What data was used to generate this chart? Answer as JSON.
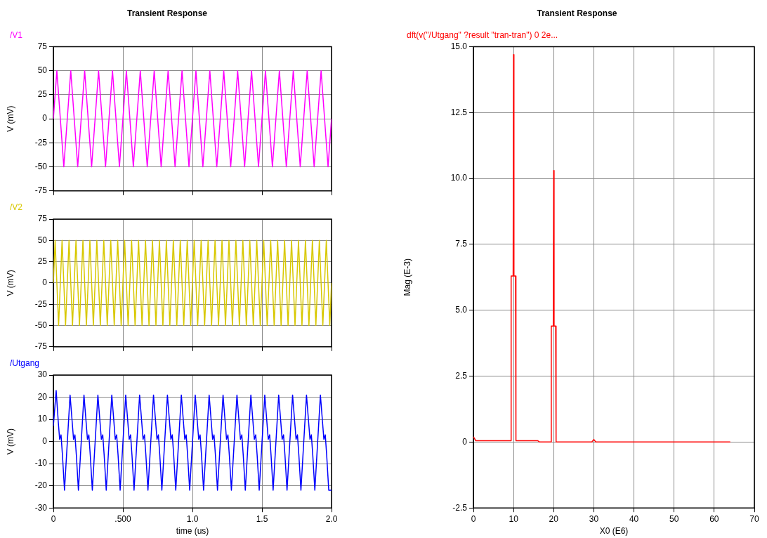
{
  "chart_data": [
    {
      "type": "line",
      "title": "Transient Response",
      "ylabel": "V (mV)",
      "xlim": [
        0,
        2
      ],
      "xticks": [
        0,
        0.5,
        1,
        1.5,
        2
      ],
      "ylim": [
        -75,
        75
      ],
      "yticks": [
        -75,
        -50,
        -25,
        0,
        25,
        50,
        75
      ],
      "grid": true,
      "legend": "top left",
      "tick_labels": "y",
      "marker": "none",
      "line_style": "solid",
      "series": [
        {
          "name": "/V1",
          "color": "#ff00ff",
          "x": [
            0,
            0.025,
            0.075,
            0.125,
            0.175,
            0.225,
            0.275,
            0.325,
            0.375,
            0.425,
            0.475,
            0.525,
            0.575,
            0.625,
            0.675,
            0.725,
            0.775,
            0.825,
            0.875,
            0.925,
            0.975,
            1.025,
            1.075,
            1.125,
            1.175,
            1.225,
            1.275,
            1.325,
            1.375,
            1.425,
            1.475,
            1.525,
            1.575,
            1.625,
            1.675,
            1.725,
            1.775,
            1.825,
            1.875,
            1.925,
            1.975,
            2.0
          ],
          "values": [
            0,
            50,
            -50,
            50,
            -50,
            50,
            -50,
            50,
            -50,
            50,
            -50,
            50,
            -50,
            50,
            -50,
            50,
            -50,
            50,
            -50,
            50,
            -50,
            50,
            -50,
            50,
            -50,
            50,
            -50,
            50,
            -50,
            50,
            -50,
            50,
            -50,
            50,
            -50,
            50,
            -50,
            50,
            -50,
            50,
            -50,
            0
          ]
        }
      ]
    },
    {
      "type": "line",
      "ylabel": "V (mV)",
      "xlim": [
        0,
        2
      ],
      "xticks": [
        0,
        0.5,
        1,
        1.5,
        2
      ],
      "ylim": [
        -75,
        75
      ],
      "yticks": [
        -75,
        -50,
        -25,
        0,
        25,
        50,
        75
      ],
      "grid": true,
      "legend": "top left",
      "tick_labels": "y",
      "marker": "none",
      "line_style": "solid",
      "series": [
        {
          "name": "/V2",
          "color": "#d8c800",
          "x": [
            0,
            0.0125,
            0.0375,
            0.0625,
            0.0875,
            0.1125,
            0.1375,
            0.1625,
            0.1875,
            0.2125,
            0.2375,
            0.2625,
            0.2875,
            0.3125,
            0.3375,
            0.3625,
            0.3875,
            0.4125,
            0.4375,
            0.4625,
            0.4875,
            0.5125,
            0.5375,
            0.5625,
            0.5875,
            0.6125,
            0.6375,
            0.6625,
            0.6875,
            0.7125,
            0.7375,
            0.7625,
            0.7875,
            0.8125,
            0.8375,
            0.8625,
            0.8875,
            0.9125,
            0.9375,
            0.9625,
            0.9875,
            1.0125,
            1.0375,
            1.0625,
            1.0875,
            1.1125,
            1.1375,
            1.1625,
            1.1875,
            1.2125,
            1.2375,
            1.2625,
            1.2875,
            1.3125,
            1.3375,
            1.3625,
            1.3875,
            1.4125,
            1.4375,
            1.4625,
            1.4875,
            1.5125,
            1.5375,
            1.5625,
            1.5875,
            1.6125,
            1.6375,
            1.6625,
            1.6875,
            1.7125,
            1.7375,
            1.7625,
            1.7875,
            1.8125,
            1.8375,
            1.8625,
            1.8875,
            1.9125,
            1.9375,
            1.9625,
            1.9875,
            2.0
          ],
          "values": [
            0,
            50,
            -50,
            50,
            -50,
            50,
            -50,
            50,
            -50,
            50,
            -50,
            50,
            -50,
            50,
            -50,
            50,
            -50,
            50,
            -50,
            50,
            -50,
            50,
            -50,
            50,
            -50,
            50,
            -50,
            50,
            -50,
            50,
            -50,
            50,
            -50,
            50,
            -50,
            50,
            -50,
            50,
            -50,
            50,
            -50,
            50,
            -50,
            50,
            -50,
            50,
            -50,
            50,
            -50,
            50,
            -50,
            50,
            -50,
            50,
            -50,
            50,
            -50,
            50,
            -50,
            50,
            -50,
            50,
            -50,
            50,
            -50,
            50,
            -50,
            50,
            -50,
            50,
            -50,
            50,
            -50,
            50,
            -50,
            50,
            -50,
            50,
            -50,
            50,
            -50,
            0
          ]
        }
      ]
    },
    {
      "type": "line",
      "xlabel": "time (us)",
      "ylabel": "V (mV)",
      "xlim": [
        0,
        2
      ],
      "xticks": [
        0,
        {
          "value": 0.5,
          "label": ".500"
        },
        {
          "value": 1,
          "label": "1.0"
        },
        {
          "value": 1.5,
          "label": "1.5"
        },
        {
          "value": 2,
          "label": "2.0"
        }
      ],
      "ylim": [
        -30,
        30
      ],
      "yticks": [
        -30,
        -20,
        -10,
        0,
        10,
        20,
        30
      ],
      "grid": true,
      "legend": "top left",
      "marker": "none",
      "line_style": "solid",
      "series": [
        {
          "name": "/Utgang",
          "color": "#0000ff",
          "x": [
            0,
            0.02,
            0.035,
            0.045,
            0.055,
            0.065,
            0.08,
            0.12,
            0.135,
            0.145,
            0.155,
            0.165,
            0.18,
            0.22,
            0.235,
            0.245,
            0.255,
            0.265,
            0.28,
            0.32,
            0.335,
            0.345,
            0.355,
            0.365,
            0.38,
            0.42,
            0.435,
            0.445,
            0.455,
            0.465,
            0.48,
            0.52,
            0.535,
            0.545,
            0.555,
            0.565,
            0.58,
            0.62,
            0.635,
            0.645,
            0.655,
            0.665,
            0.68,
            0.72,
            0.735,
            0.745,
            0.755,
            0.765,
            0.78,
            0.82,
            0.835,
            0.845,
            0.855,
            0.865,
            0.88,
            0.92,
            0.935,
            0.945,
            0.955,
            0.965,
            0.98,
            1.02,
            1.035,
            1.045,
            1.055,
            1.065,
            1.08,
            1.12,
            1.135,
            1.145,
            1.155,
            1.165,
            1.18,
            1.22,
            1.235,
            1.245,
            1.255,
            1.265,
            1.28,
            1.32,
            1.335,
            1.345,
            1.355,
            1.365,
            1.38,
            1.42,
            1.435,
            1.445,
            1.455,
            1.465,
            1.48,
            1.52,
            1.535,
            1.545,
            1.555,
            1.565,
            1.58,
            1.62,
            1.635,
            1.645,
            1.655,
            1.665,
            1.68,
            1.72,
            1.735,
            1.745,
            1.755,
            1.765,
            1.78,
            1.82,
            1.835,
            1.845,
            1.855,
            1.865,
            1.88,
            1.92,
            1.935,
            1.945,
            1.955,
            1.965,
            1.98,
            2.0
          ],
          "values": [
            7,
            23,
            9,
            1,
            3,
            -6,
            -22,
            21,
            9,
            1,
            3,
            -6,
            -22,
            21,
            9,
            1,
            3,
            -6,
            -22,
            21,
            9,
            1,
            3,
            -6,
            -22,
            21,
            9,
            1,
            3,
            -6,
            -22,
            21,
            9,
            1,
            3,
            -6,
            -22,
            21,
            9,
            1,
            3,
            -6,
            -22,
            21,
            9,
            1,
            3,
            -6,
            -22,
            21,
            9,
            1,
            3,
            -6,
            -22,
            21,
            9,
            1,
            3,
            -6,
            -22,
            21,
            9,
            1,
            3,
            -6,
            -22,
            21,
            9,
            1,
            3,
            -6,
            -22,
            21,
            9,
            1,
            3,
            -6,
            -22,
            21,
            9,
            1,
            3,
            -6,
            -22,
            21,
            9,
            1,
            3,
            -6,
            -22,
            21,
            9,
            1,
            3,
            -6,
            -22,
            21,
            9,
            1,
            3,
            -6,
            -22,
            21,
            9,
            1,
            3,
            -6,
            -22,
            21,
            9,
            1,
            3,
            -6,
            -22,
            21,
            9,
            1,
            3,
            -6,
            -22,
            -22
          ]
        }
      ]
    },
    {
      "type": "line",
      "title": "Transient Response",
      "xlabel": "X0 (E6)",
      "ylabel": "Mag (E-3)",
      "xlim": [
        0,
        70
      ],
      "xticks": [
        0,
        10,
        20,
        30,
        40,
        50,
        60,
        70
      ],
      "ylim": [
        -2.5,
        15
      ],
      "yticks": [
        {
          "value": -2.5,
          "label": "-2.5"
        },
        0,
        {
          "value": 2.5,
          "label": "2.5"
        },
        {
          "value": 5,
          "label": "5.0"
        },
        {
          "value": 7.5,
          "label": "7.5"
        },
        {
          "value": 10,
          "label": "10.0"
        },
        {
          "value": 12.5,
          "label": "12.5"
        },
        {
          "value": 15,
          "label": "15.0"
        }
      ],
      "grid": true,
      "legend": "top left",
      "marker": "none",
      "line_style": "solid",
      "series": [
        {
          "name": "dft(v(\"/Utgang\" ?result \"tran-tran\") 0 2e...",
          "color": "#ff0000",
          "x": [
            0,
            0.6,
            9.3,
            9.4,
            9.9,
            10,
            10.1,
            10.5,
            10.6,
            16,
            16.5,
            19.3,
            19.4,
            19.9,
            20,
            20.1,
            20.5,
            20.6,
            29.5,
            30,
            30.5,
            64
          ],
          "values": [
            0.2,
            0.05,
            0.05,
            6.3,
            6.3,
            14.7,
            6.3,
            6.3,
            0.05,
            0.05,
            0,
            0,
            4.4,
            4.4,
            10.3,
            4.4,
            4.4,
            0,
            0,
            0.1,
            0,
            0
          ]
        }
      ]
    }
  ]
}
